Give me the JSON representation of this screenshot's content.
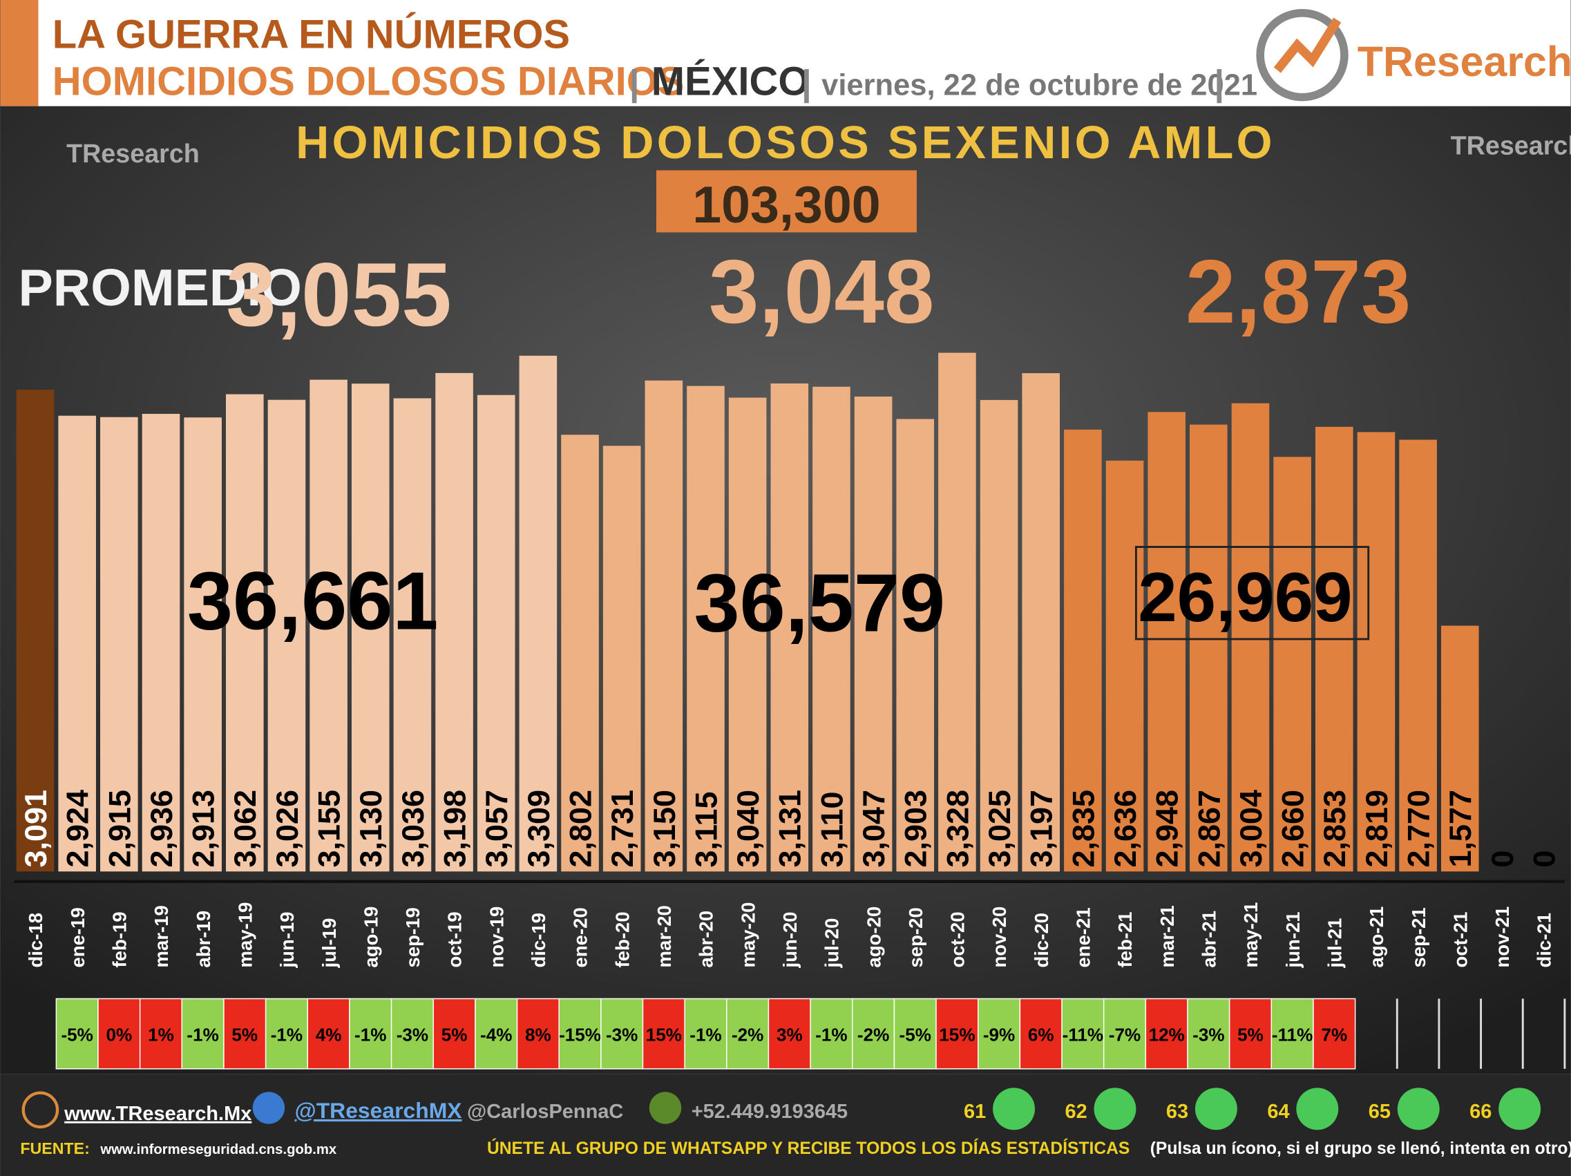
{
  "header": {
    "title": "LA GUERRA EN NÚMEROS",
    "subtitle": "HOMICIDIOS DOLOSOS DIARIOS",
    "country": "MÉXICO",
    "date": "viernes, 22 de octubre de 2021",
    "brand": "TResearch"
  },
  "chart_data": {
    "type": "bar",
    "title": "HOMICIDIOS DOLOSOS SEXENIO AMLO",
    "total": "103,300",
    "average_label": "PROMEDIO:",
    "averages": [
      "3,055",
      "3,048",
      "2,873"
    ],
    "year_totals": [
      "36,661",
      "36,579",
      "26,969"
    ],
    "categories": [
      "dic-18",
      "ene-19",
      "feb-19",
      "mar-19",
      "abr-19",
      "may-19",
      "jun-19",
      "jul-19",
      "ago-19",
      "sep-19",
      "oct-19",
      "nov-19",
      "dic-19",
      "ene-20",
      "feb-20",
      "mar-20",
      "abr-20",
      "may-20",
      "jun-20",
      "jul-20",
      "ago-20",
      "sep-20",
      "oct-20",
      "nov-20",
      "dic-20",
      "ene-21",
      "feb-21",
      "mar-21",
      "abr-21",
      "may-21",
      "jun-21",
      "jul-21",
      "ago-21",
      "sep-21",
      "oct-21",
      "nov-21",
      "dic-21"
    ],
    "values": [
      3091,
      2924,
      2915,
      2936,
      2913,
      3062,
      3026,
      3155,
      3130,
      3036,
      3198,
      3057,
      3309,
      2802,
      2731,
      3150,
      3115,
      3040,
      3131,
      3110,
      3047,
      2903,
      3328,
      3025,
      3197,
      2835,
      2636,
      2948,
      2867,
      3004,
      2660,
      2853,
      2819,
      2770,
      1577,
      0,
      0
    ],
    "value_labels": [
      "3,091",
      "2,924",
      "2,915",
      "2,936",
      "2,913",
      "3,062",
      "3,026",
      "3,155",
      "3,130",
      "3,036",
      "3,198",
      "3,057",
      "3,309",
      "2,802",
      "2,731",
      "3,150",
      "3,115",
      "3,040",
      "3,131",
      "3,110",
      "3,047",
      "2,903",
      "3,328",
      "3,025",
      "3,197",
      "2,835",
      "2,636",
      "2,948",
      "2,867",
      "3,004",
      "2,660",
      "2,853",
      "2,819",
      "2,770",
      "1,577",
      "0",
      "0"
    ],
    "colors": [
      "#7a3d12",
      "#f2c8a8",
      "#f2c8a8",
      "#f2c8a8",
      "#f2c8a8",
      "#f2c8a8",
      "#f2c8a8",
      "#f2c8a8",
      "#f2c8a8",
      "#f2c8a8",
      "#f2c8a8",
      "#f2c8a8",
      "#f2c8a8",
      "#eeb183",
      "#eeb183",
      "#eeb183",
      "#eeb183",
      "#eeb183",
      "#eeb183",
      "#eeb183",
      "#eeb183",
      "#eeb183",
      "#eeb183",
      "#eeb183",
      "#eeb183",
      "#e0813f",
      "#e0813f",
      "#e0813f",
      "#e0813f",
      "#e0813f",
      "#e0813f",
      "#e0813f",
      "#e0813f",
      "#e0813f",
      "#e0813f",
      "#e0813f",
      "#e0813f"
    ],
    "changes": [
      -5,
      0,
      1,
      -1,
      5,
      -1,
      4,
      -1,
      -3,
      5,
      -4,
      8,
      -15,
      -3,
      15,
      -1,
      -2,
      3,
      -1,
      -2,
      -5,
      15,
      -9,
      6,
      -11,
      -7,
      12,
      -3,
      5,
      -11,
      7
    ],
    "change_labels": [
      "-5%",
      "0%",
      "1%",
      "-1%",
      "5%",
      "-1%",
      "4%",
      "-1%",
      "-3%",
      "5%",
      "-4%",
      "8%",
      "-15%",
      "-3%",
      "15%",
      "-1%",
      "-2%",
      "3%",
      "-1%",
      "-2%",
      "-5%",
      "15%",
      "-9%",
      "6%",
      "-11%",
      "-7%",
      "12%",
      "-3%",
      "5%",
      "-11%",
      "7%"
    ]
  },
  "footer": {
    "website": "www.TResearch.Mx",
    "twitter": "@TResearchMX",
    "author": "@CarlosPennaC",
    "phone": "+52.449.9193645",
    "groups": [
      "61",
      "62",
      "63",
      "64",
      "65",
      "66"
    ],
    "source_label": "FUENTE:",
    "source": "www.informeseguridad.cns.gob.mx",
    "cta": "ÚNETE AL GRUPO DE WHATSAPP Y RECIBE TODOS LOS DÍAS ESTADÍSTICAS",
    "cta_note": "(Pulsa un ícono, si el grupo se llenó, intenta en otro)"
  }
}
